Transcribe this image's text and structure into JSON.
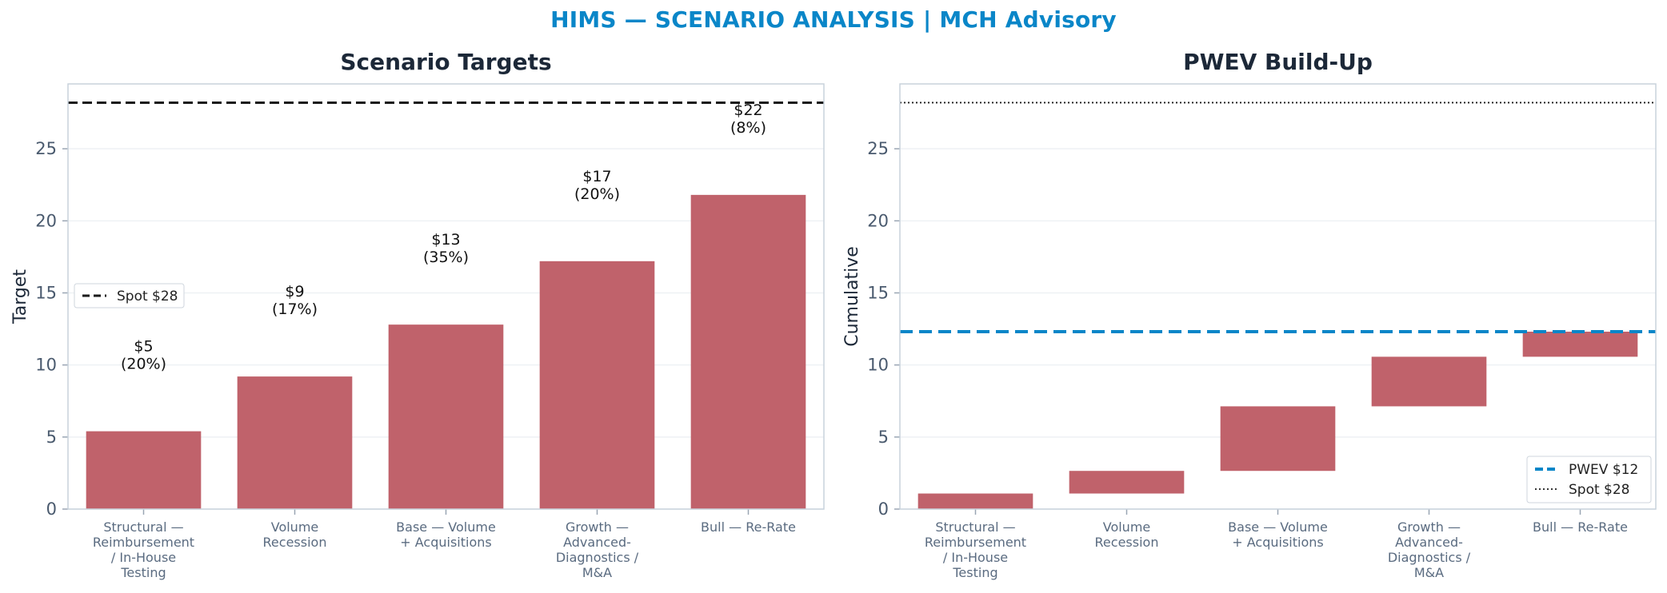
{
  "figure_title": "HIMS — SCENARIO ANALYSIS | MCH Advisory",
  "colors": {
    "bar": "#c0626b",
    "pwev_line": "#0a86c8",
    "spot_line": "#1c2838",
    "title": "#0a86c8",
    "axis_frame": "#c8d2dc",
    "grid": "#eef1f4"
  },
  "chart_data": [
    {
      "type": "bar",
      "title": "Scenario Targets",
      "ylabel": "Target",
      "xlabel": "",
      "ylim": [
        0,
        29.5
      ],
      "yticks": [
        0,
        5,
        10,
        15,
        20,
        25
      ],
      "grid": true,
      "categories": [
        [
          "Structural —",
          "Reimbursement",
          "/ In-House",
          "Testing"
        ],
        [
          "Volume",
          "Recession"
        ],
        [
          "Base — Volume",
          "+ Acquisitions"
        ],
        [
          "Growth —",
          "Advanced-",
          "Diagnostics /",
          "M&A"
        ],
        [
          "Bull — Re-Rate"
        ]
      ],
      "values": [
        5.4,
        9.2,
        12.8,
        17.2,
        21.8
      ],
      "data_labels": [
        [
          "$5",
          "(20%)"
        ],
        [
          "$9",
          "(17%)"
        ],
        [
          "$13",
          "(35%)"
        ],
        [
          "$17",
          "(20%)"
        ],
        [
          "$22",
          "(8%)"
        ]
      ],
      "reference_lines": [
        {
          "name": "Spot $28",
          "value": 28.2,
          "style": "dashed"
        }
      ],
      "legend": {
        "placement": "center-left",
        "entries": [
          "Spot $28"
        ]
      }
    },
    {
      "type": "waterfall",
      "title": "PWEV Build-Up",
      "ylabel": "Cumulative",
      "xlabel": "",
      "ylim": [
        0,
        29.5
      ],
      "yticks": [
        0,
        5,
        10,
        15,
        20,
        25
      ],
      "grid": true,
      "categories": [
        [
          "Structural —",
          "Reimbursement",
          "/ In-House",
          "Testing"
        ],
        [
          "Volume",
          "Recession"
        ],
        [
          "Base — Volume",
          "+ Acquisitions"
        ],
        [
          "Growth —",
          "Advanced-",
          "Diagnostics /",
          "M&A"
        ],
        [
          "Bull — Re-Rate"
        ]
      ],
      "segments": [
        {
          "start": 0,
          "end": 1.08
        },
        {
          "start": 1.08,
          "end": 2.65
        },
        {
          "start": 2.65,
          "end": 7.13
        },
        {
          "start": 7.13,
          "end": 10.57
        },
        {
          "start": 10.57,
          "end": 12.31
        }
      ],
      "reference_lines": [
        {
          "name": "PWEV $12",
          "value": 12.31,
          "style": "dashed"
        },
        {
          "name": "Spot $28",
          "value": 28.2,
          "style": "dotted"
        }
      ],
      "legend": {
        "placement": "lower-right",
        "entries": [
          "PWEV $12",
          "Spot $28"
        ]
      }
    }
  ]
}
